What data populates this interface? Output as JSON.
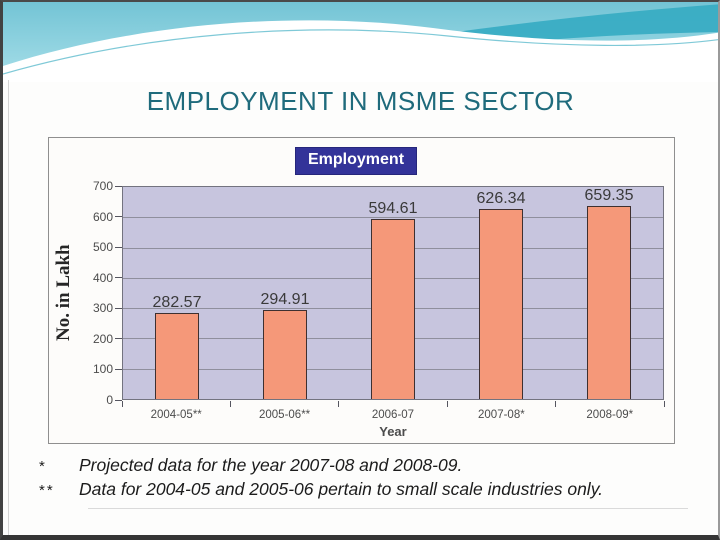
{
  "slide": {
    "title": "EMPLOYMENT IN MSME SECTOR"
  },
  "chart_data": {
    "type": "bar",
    "title": "",
    "legend": [
      "Employment"
    ],
    "legend_position": "top-center",
    "categories": [
      "2004-05**",
      "2005-06**",
      "2006-07",
      "2007-08*",
      "2008-09*"
    ],
    "values": [
      282.57,
      294.91,
      594.61,
      626.34,
      659.35
    ],
    "xlabel": "Year",
    "ylabel": "No. in Lakh",
    "ylim": [
      0,
      700
    ],
    "yticks": [
      0,
      100,
      200,
      300,
      400,
      500,
      600,
      700
    ],
    "grid": true
  },
  "footnotes": [
    {
      "marker": "*",
      "text": "Projected data for the year 2007-08 and 2008-09."
    },
    {
      "marker": "**",
      "text": "Data for 2004-05 and 2005-06 pertain to small scale industries only."
    }
  ],
  "colors": {
    "title_color": "#1F6B7C",
    "legend_bg": "#333399",
    "bar_fill": "#F59879",
    "plot_bg": "#C7C5DE",
    "wave_base_top": "#73C4D5",
    "wave_base_bottom": "#A8DFE9",
    "wave_ribbon": "#35ABC2",
    "wave_accent": "#49B2C6"
  }
}
